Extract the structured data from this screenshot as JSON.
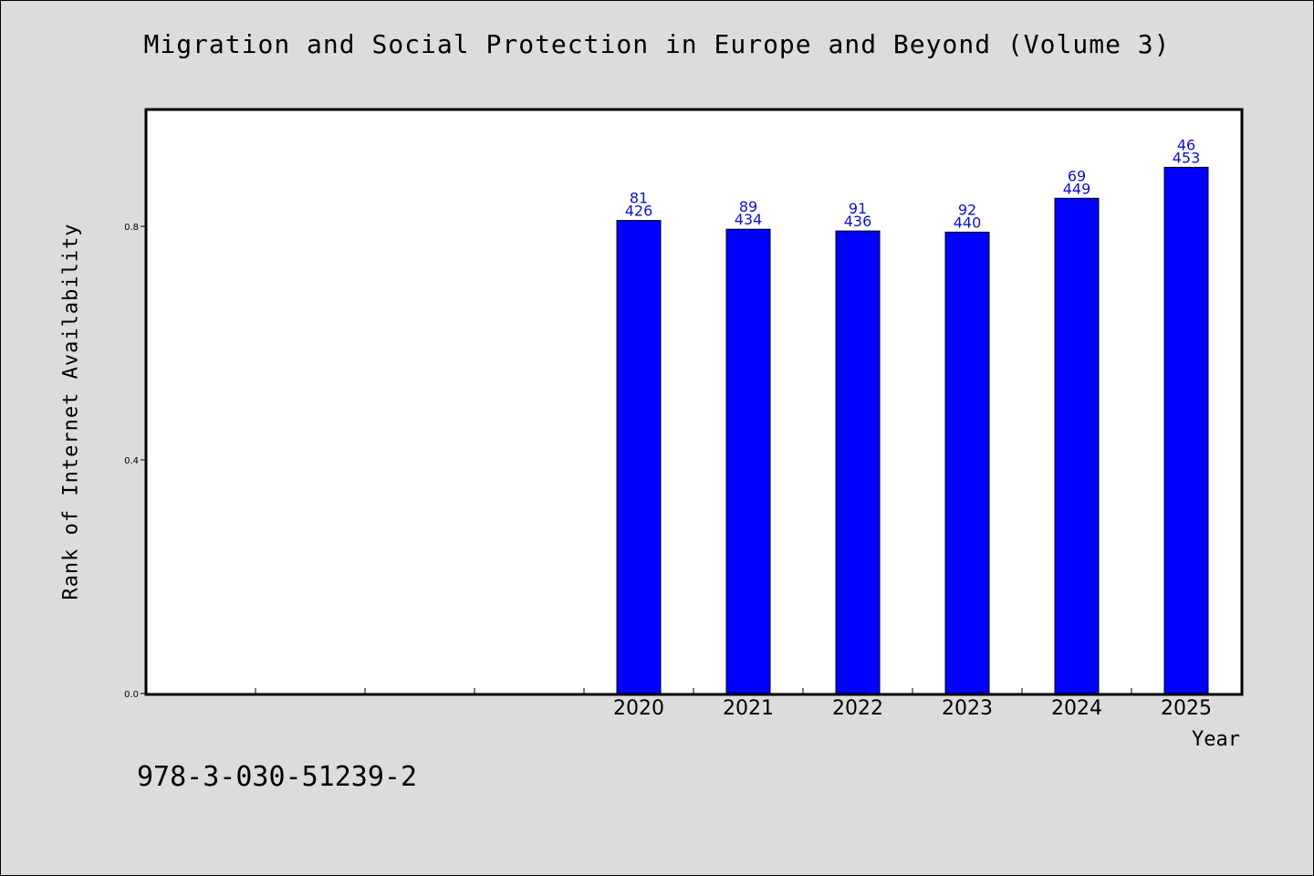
{
  "chart_data": {
    "type": "bar",
    "title": "Migration and Social Protection in Europe and Beyond (Volume 3)",
    "xlabel": "Year",
    "ylabel": "Rank of Internet Availability",
    "ylim": [
      0,
      1.0
    ],
    "yticks": [
      "0.0",
      "0.4",
      "0.8"
    ],
    "ytick_values": [
      0,
      0.4,
      0.8
    ],
    "grid": false,
    "categories": [
      "2020",
      "2021",
      "2022",
      "2023",
      "2024",
      "2025"
    ],
    "values": [
      0.81,
      0.795,
      0.792,
      0.79,
      0.848,
      0.901
    ],
    "labels_top": [
      "81",
      "89",
      "91",
      "92",
      "69",
      "46"
    ],
    "labels_bottom": [
      "426",
      "434",
      "436",
      "440",
      "449",
      "453"
    ],
    "bar_color": "#0000ff",
    "label_color": "#1010c8"
  },
  "footer": {
    "isbn": "978-3-030-51239-2"
  }
}
